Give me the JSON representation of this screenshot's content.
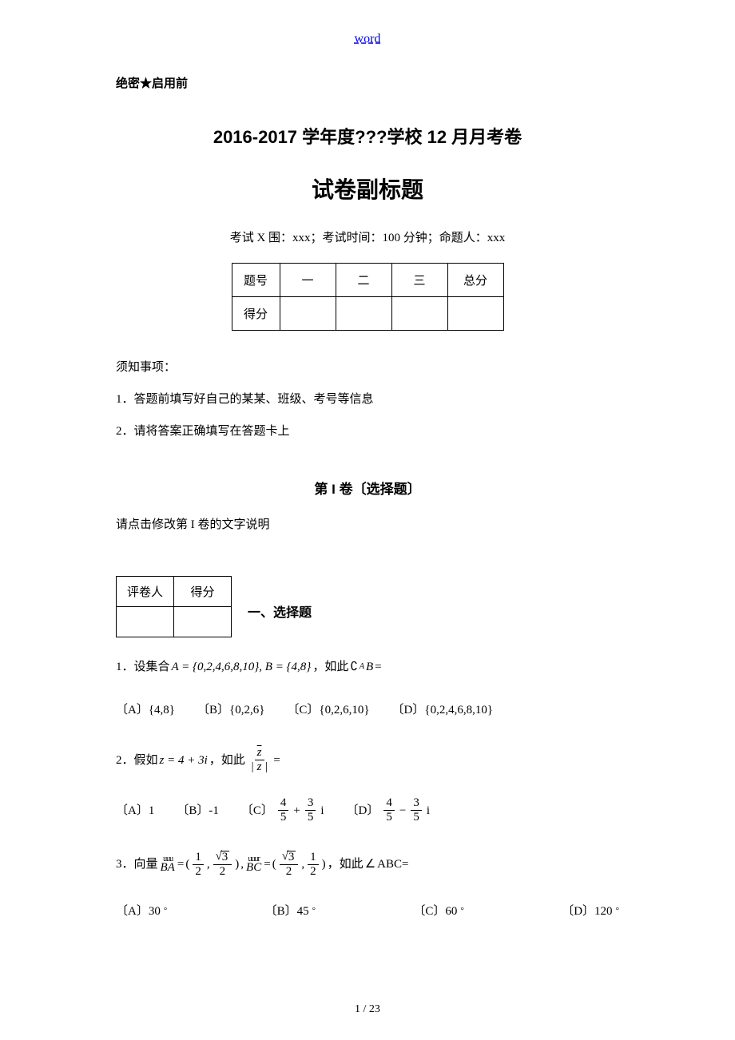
{
  "header": {
    "link_text": "word",
    "confidential": "绝密★启用前",
    "title": "2016-2017 学年度???学校 12 月月考卷",
    "subtitle": "试卷副标题",
    "meta": "考试 X 围：xxx；考试时间：100 分钟；命题人：xxx"
  },
  "score_table": {
    "row1": [
      "题号",
      "一",
      "二",
      "三",
      "总分"
    ],
    "row2_label": "得分"
  },
  "instructions": {
    "heading": "须知事项：",
    "line1": "1．答题前填写好自己的某某、班级、考号等信息",
    "line2": "2．请将答案正确填写在答题卡上"
  },
  "section": {
    "heading": "第 I 卷〔选择题〕",
    "note": "请点击修改第 I 卷的文字说明"
  },
  "grader": {
    "col1": "评卷人",
    "col2": "得分"
  },
  "part_label": "一、选择题",
  "q1": {
    "prefix": "1．设集合 ",
    "set_text": "A = {0,2,4,6,8,10}, B = {4,8}",
    "suffix": "，如此",
    "comp": "∁",
    "sub": "A",
    "postsub": "B",
    "eq": " =",
    "optA": "〔A〕{4,8}",
    "optB": "〔B〕{0,2,6}",
    "optC": "〔C〕{0,2,6,10}",
    "optD": "〔D〕{0,2,4,6,8,10}"
  },
  "q2": {
    "prefix": "2．假如",
    "zexpr": "z = 4 + 3i",
    "mid": "，如此",
    "fr_num": "z",
    "fr_den": "| z |",
    "eq": "=",
    "optA_label": "〔A〕1",
    "optB_label": "〔B〕-1",
    "optC_label": "〔C〕",
    "optD_label": "〔D〕",
    "four": "4",
    "three": "3",
    "five": "5",
    "i": "i",
    "plus": "+",
    "minus": "−"
  },
  "q3": {
    "prefix": "3．向量",
    "BA": "BA",
    "BC": "BC",
    "eq": "=",
    "lp": "(",
    "rp": ")",
    "comma": ",",
    "one": "1",
    "two": "2",
    "three": "3",
    "mid": " , ",
    "suffix": "，如此",
    "angle": "∠",
    "abc": "ABC=",
    "arr": "uuu\u0007",
    "arr2": "uuur",
    "optA": "〔A〕30",
    "optB": "〔B〕45",
    "optC": "〔C〕60",
    "optD": "〔D〕120",
    "deg": "°"
  },
  "footer": "1 / 23"
}
